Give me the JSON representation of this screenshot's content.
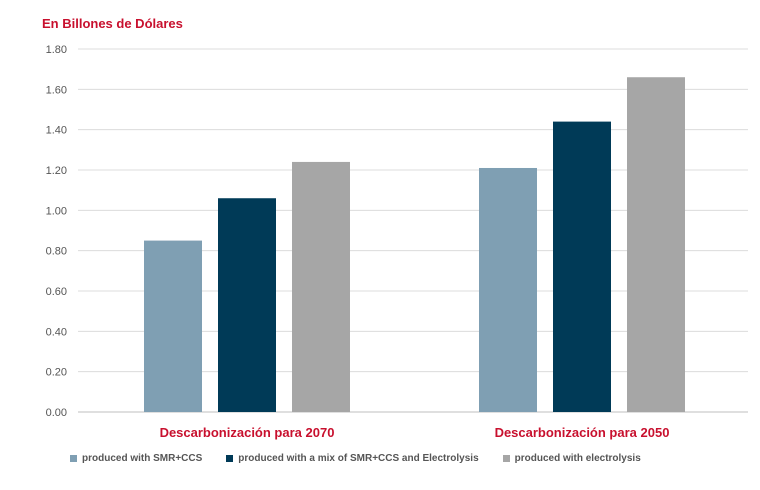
{
  "chart_data": {
    "type": "bar",
    "ylabel": "En Billones de Dólares",
    "categories": [
      "Descarbonización para 2070",
      "Descarbonización para 2050"
    ],
    "series": [
      {
        "name": "produced with SMR+CCS",
        "values": [
          0.85,
          1.21
        ],
        "color": "#7f9fb3"
      },
      {
        "name": "produced with a mix of SMR+CCS and Electrolysis",
        "values": [
          1.06,
          1.44
        ],
        "color": "#003a57"
      },
      {
        "name": "produced with electrolysis",
        "values": [
          1.24,
          1.66
        ],
        "color": "#a6a6a6"
      }
    ],
    "yticks": [
      "0.00",
      "0.20",
      "0.40",
      "0.60",
      "0.80",
      "1.00",
      "1.20",
      "1.40",
      "1.60",
      "1.80"
    ],
    "ylim": [
      0,
      1.8
    ],
    "grid": true,
    "legend_position": "bottom",
    "ylabel_color": "#c8102e",
    "category_label_color": "#c8102e"
  }
}
